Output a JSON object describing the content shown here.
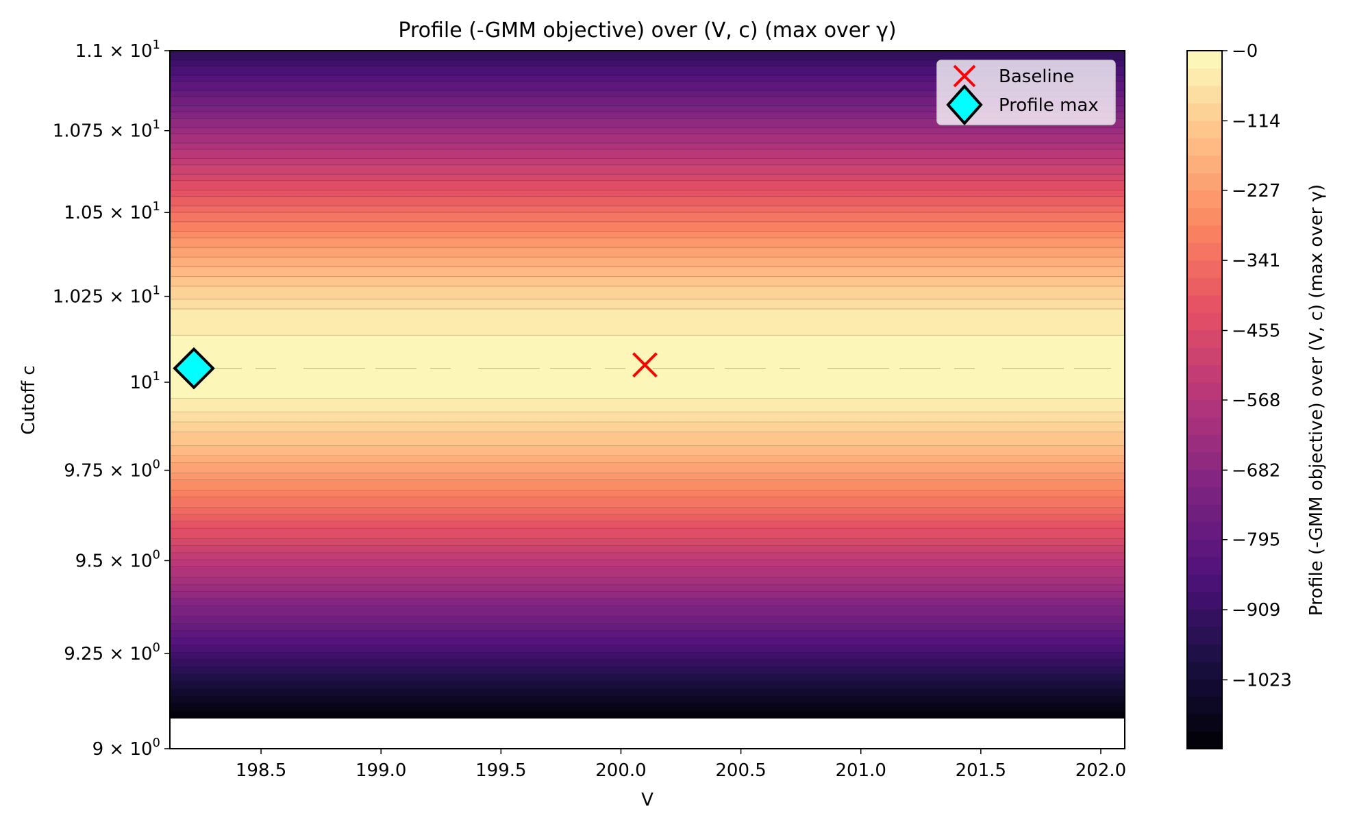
{
  "chart_data": {
    "type": "heatmap",
    "title": "Profile (-GMM objective) over (V, c) (max over γ)",
    "xlabel": "V",
    "ylabel": "Cutoff c",
    "colorbar_label": "Profile (-GMM objective) over (V, c) (max over γ)",
    "colormap": "magma",
    "xlim": [
      198.12,
      202.1
    ],
    "ylim": [
      9.0,
      11.0
    ],
    "y_scale": "log",
    "data_extent": {
      "x": [
        198.12,
        202.1
      ],
      "y": [
        9.08,
        11.0
      ]
    },
    "x_ticks": [
      198.5,
      199.0,
      199.5,
      200.0,
      200.5,
      201.0,
      201.5,
      202.0
    ],
    "x_tick_labels": [
      "198.5",
      "199.0",
      "199.5",
      "200.0",
      "200.5",
      "201.0",
      "201.5",
      "202.0"
    ],
    "y_ticks": [
      {
        "value": 11.0,
        "mantissa": "1.1",
        "exponent": "1"
      },
      {
        "value": 10.75,
        "mantissa": "1.075",
        "exponent": "1"
      },
      {
        "value": 10.5,
        "mantissa": "1.05",
        "exponent": "1"
      },
      {
        "value": 10.25,
        "mantissa": "1.025",
        "exponent": "1"
      },
      {
        "value": 10.0,
        "mantissa": "10",
        "exponent": "1"
      },
      {
        "value": 9.75,
        "mantissa": "9.75",
        "exponent": "0"
      },
      {
        "value": 9.5,
        "mantissa": "9.5",
        "exponent": "0"
      },
      {
        "value": 9.25,
        "mantissa": "9.25",
        "exponent": "0"
      },
      {
        "value": 9.0,
        "mantissa": "9",
        "exponent": "0"
      }
    ],
    "profile_by_c": {
      "c": [
        9.08,
        9.2,
        9.35,
        9.5,
        9.65,
        9.8,
        9.95,
        10.05,
        10.2,
        10.35,
        10.5,
        10.65,
        10.8,
        10.95,
        11.0
      ],
      "value": [
        -1135,
        -950,
        -740,
        -540,
        -340,
        -160,
        -30,
        -5,
        -45,
        -180,
        -340,
        -520,
        -700,
        -880,
        -940
      ]
    },
    "colorbar": {
      "vmin": -1135,
      "vmax": 0,
      "ticks": [
        0,
        -114,
        -227,
        -341,
        -455,
        -568,
        -682,
        -795,
        -909,
        -1023
      ],
      "tick_labels": [
        "−0",
        "−114",
        "−227",
        "−341",
        "−455",
        "−568",
        "−682",
        "−795",
        "−909",
        "−1023"
      ]
    },
    "markers": [
      {
        "name": "Baseline",
        "x": 200.1,
        "y": 10.05,
        "shape": "x",
        "color": "#ff0000"
      },
      {
        "name": "Profile max",
        "x": 198.22,
        "y": 10.04,
        "shape": "diamond",
        "color": "#00ffff"
      }
    ],
    "legend": {
      "placement": "top-right",
      "entries": [
        "Baseline",
        "Profile max"
      ]
    }
  }
}
